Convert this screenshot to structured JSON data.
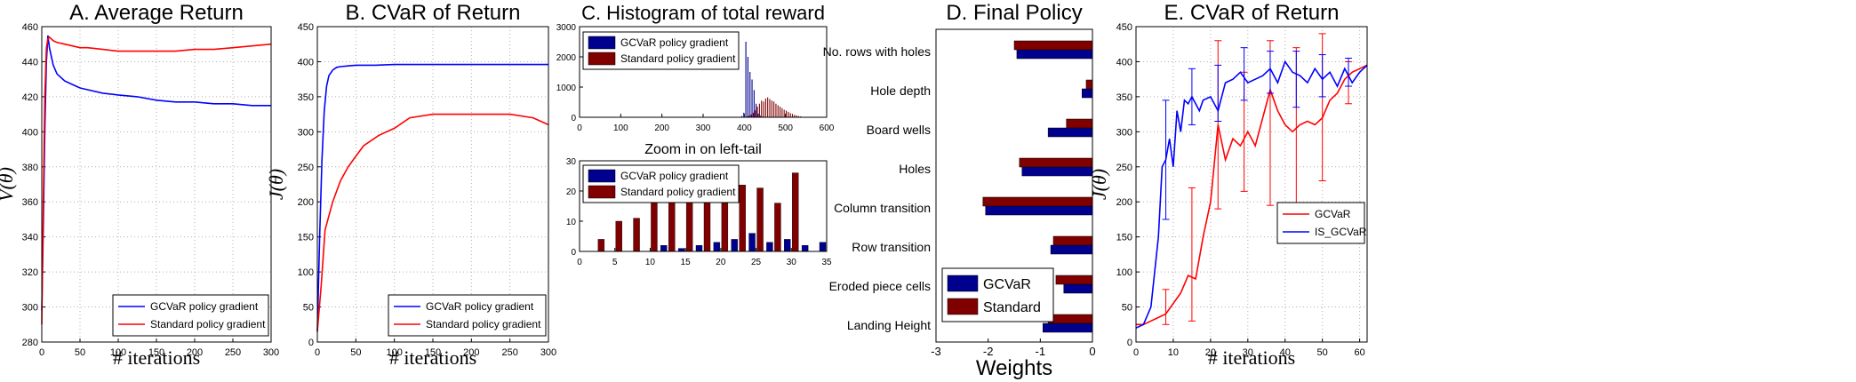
{
  "colors": {
    "blue": "#0000ff",
    "red": "#ff0000",
    "navy": "#00008f",
    "maroon": "#800000",
    "grid": "#b0b0b0"
  },
  "chart_data": [
    {
      "type": "line",
      "title": "A. Average Return",
      "xlabel": "# iterations",
      "ylabel": "V(θ)",
      "xlim": [
        0,
        300
      ],
      "ylim": [
        280,
        460
      ],
      "xticks": [
        "0",
        "50",
        "100",
        "150",
        "200",
        "250",
        "300"
      ],
      "yticks": [
        "280",
        "300",
        "320",
        "340",
        "360",
        "380",
        "400",
        "420",
        "440",
        "460"
      ],
      "grid": true,
      "legend_position": "bottom-right",
      "series": [
        {
          "name": "GCVaR policy gradient",
          "color": "#0000ff",
          "x": [
            0,
            2,
            4,
            6,
            8,
            10,
            15,
            20,
            30,
            40,
            50,
            60,
            80,
            100,
            125,
            150,
            175,
            200,
            225,
            250,
            275,
            300
          ],
          "y": [
            298,
            345,
            400,
            440,
            455,
            448,
            438,
            433,
            429,
            427,
            425,
            424,
            422,
            421,
            420,
            418,
            417,
            417,
            416,
            416,
            415,
            415
          ]
        },
        {
          "name": "Standard policy gradient",
          "color": "#ff0000",
          "x": [
            0,
            2,
            4,
            6,
            8,
            10,
            15,
            20,
            30,
            40,
            50,
            60,
            80,
            100,
            125,
            150,
            175,
            200,
            225,
            250,
            275,
            300
          ],
          "y": [
            290,
            360,
            420,
            448,
            453,
            454,
            452,
            451,
            450,
            449,
            448,
            448,
            447,
            446,
            446,
            446,
            446,
            447,
            447,
            448,
            449,
            450
          ]
        }
      ]
    },
    {
      "type": "line",
      "title": "B. CVaR of Return",
      "xlabel": "# iterations",
      "ylabel": "J(θ)",
      "xlim": [
        0,
        300
      ],
      "ylim": [
        0,
        450
      ],
      "xticks": [
        "0",
        "50",
        "100",
        "150",
        "200",
        "250",
        "300"
      ],
      "yticks": [
        "0",
        "50",
        "100",
        "150",
        "200",
        "250",
        "300",
        "350",
        "400",
        "450"
      ],
      "grid": true,
      "legend_position": "bottom-right",
      "series": [
        {
          "name": "GCVaR policy gradient",
          "color": "#0000ff",
          "x": [
            0,
            3,
            6,
            9,
            12,
            15,
            20,
            25,
            30,
            40,
            50,
            75,
            100,
            150,
            200,
            250,
            300
          ],
          "y": [
            15,
            150,
            260,
            330,
            365,
            380,
            388,
            392,
            393,
            394,
            395,
            395,
            396,
            396,
            396,
            396,
            396
          ]
        },
        {
          "name": "Standard policy gradient",
          "color": "#ff0000",
          "x": [
            0,
            5,
            10,
            20,
            30,
            40,
            50,
            60,
            80,
            100,
            120,
            150,
            200,
            250,
            280,
            300
          ],
          "y": [
            15,
            80,
            160,
            200,
            230,
            250,
            265,
            280,
            295,
            305,
            320,
            325,
            325,
            325,
            320,
            310
          ]
        }
      ]
    },
    {
      "type": "bar",
      "title": "C. Histogram of total reward",
      "xlim": [
        0,
        600
      ],
      "ylim": [
        0,
        3000
      ],
      "xticks": [
        "0",
        "100",
        "200",
        "300",
        "400",
        "500",
        "600"
      ],
      "yticks": [
        "0",
        "1000",
        "2000",
        "3000"
      ],
      "grid": false,
      "legend_position": "top-left",
      "categories": [
        395,
        400,
        405,
        410,
        415,
        420,
        425,
        430,
        435,
        440,
        445,
        450,
        455,
        460,
        465,
        470,
        475,
        480,
        485,
        490,
        495,
        500,
        505,
        510,
        515,
        520,
        525,
        530,
        535,
        540
      ],
      "series": [
        {
          "name": "GCVaR policy gradient",
          "color": "#00008f",
          "values": [
            40,
            150,
            2500,
            2000,
            1500,
            1250,
            900,
            450,
            120,
            50,
            20,
            10,
            5,
            0,
            0,
            0,
            0,
            0,
            0,
            0,
            0,
            0,
            0,
            0,
            0,
            0,
            0,
            0,
            0,
            0
          ]
        },
        {
          "name": "Standard policy gradient",
          "color": "#800000",
          "values": [
            5,
            10,
            30,
            50,
            90,
            150,
            230,
            350,
            450,
            550,
            520,
            620,
            660,
            600,
            550,
            520,
            450,
            400,
            350,
            300,
            250,
            220,
            180,
            140,
            110,
            80,
            60,
            40,
            30,
            15
          ]
        }
      ]
    },
    {
      "type": "bar",
      "title": "Zoom in on left-tail",
      "xlim": [
        0,
        35
      ],
      "ylim": [
        0,
        30
      ],
      "xticks": [
        "0",
        "5",
        "10",
        "15",
        "20",
        "25",
        "30",
        "35"
      ],
      "yticks": [
        "0",
        "10",
        "20",
        "30"
      ],
      "grid": false,
      "legend_position": "top-left",
      "categories": [
        2.5,
        5,
        7.5,
        10,
        12.5,
        15,
        17.5,
        20,
        22.5,
        25,
        27.5,
        30,
        32.5,
        35
      ],
      "series": [
        {
          "name": "GCVaR policy gradient",
          "color": "#00008f",
          "values": [
            0,
            0,
            0,
            0,
            2,
            1,
            2,
            3,
            4,
            6,
            3,
            4,
            2,
            3
          ]
        },
        {
          "name": "Standard policy gradient",
          "color": "#800000",
          "values": [
            4,
            10,
            11,
            18,
            17,
            18,
            18,
            16,
            22,
            21,
            16,
            26,
            0,
            0
          ]
        }
      ]
    },
    {
      "type": "bar",
      "title": "D. Final Policy",
      "xlabel": "Weights",
      "xlim": [
        -3,
        0
      ],
      "xticks": [
        "-3",
        "-2",
        "-1",
        "0"
      ],
      "grid": false,
      "legend_position": "bottom-left",
      "categories": [
        "No. rows with holes",
        "Hole depth",
        "Board wells",
        "Holes",
        "Column transition",
        "Row transition",
        "Eroded piece cells",
        "Landing Height"
      ],
      "series": [
        {
          "name": "GCVaR",
          "color": "#00008f",
          "values": [
            -1.45,
            -0.2,
            -0.85,
            -1.35,
            -2.05,
            -0.8,
            -0.55,
            -0.95
          ]
        },
        {
          "name": "Standard",
          "color": "#800000",
          "values": [
            -1.5,
            -0.12,
            -0.5,
            -1.4,
            -2.1,
            -0.75,
            -0.7,
            -0.85
          ]
        }
      ]
    },
    {
      "type": "line",
      "title": "E. CVaR of Return",
      "xlabel": "# iterations",
      "ylabel": "J(θ)",
      "xlim": [
        0,
        62
      ],
      "ylim": [
        0,
        450
      ],
      "xticks": [
        "0",
        "10",
        "20",
        "30",
        "40",
        "50",
        "60"
      ],
      "yticks": [
        "0",
        "50",
        "100",
        "150",
        "200",
        "250",
        "300",
        "350",
        "400",
        "450"
      ],
      "grid": true,
      "legend_position": "bottom-right",
      "series": [
        {
          "name": "GCVaR",
          "color": "#ff0000",
          "x": [
            0,
            2,
            4,
            6,
            8,
            10,
            12,
            14,
            16,
            18,
            20,
            22,
            24,
            26,
            28,
            30,
            32,
            34,
            36,
            38,
            40,
            42,
            44,
            46,
            48,
            50,
            52,
            54,
            56,
            58,
            60,
            62
          ],
          "y": [
            25,
            25,
            30,
            35,
            40,
            55,
            70,
            95,
            90,
            150,
            200,
            310,
            260,
            290,
            280,
            300,
            280,
            320,
            360,
            330,
            310,
            300,
            310,
            315,
            310,
            320,
            345,
            355,
            375,
            385,
            390,
            395
          ],
          "errorbars": [
            {
              "x": 8,
              "y": 45,
              "lo": 25,
              "hi": 75
            },
            {
              "x": 15,
              "y": 125,
              "lo": 30,
              "hi": 220
            },
            {
              "x": 22,
              "y": 310,
              "lo": 190,
              "hi": 430
            },
            {
              "x": 29,
              "y": 300,
              "lo": 215,
              "hi": 385
            },
            {
              "x": 36,
              "y": 370,
              "lo": 195,
              "hi": 430
            },
            {
              "x": 43,
              "y": 295,
              "lo": 160,
              "hi": 420
            },
            {
              "x": 50,
              "y": 330,
              "lo": 230,
              "hi": 440
            },
            {
              "x": 57,
              "y": 380,
              "lo": 340,
              "hi": 400
            }
          ]
        },
        {
          "name": "IS_GCVaR",
          "color": "#0000ff",
          "x": [
            0,
            2,
            4,
            6,
            7,
            8,
            9,
            10,
            11,
            12,
            13,
            14,
            15,
            16,
            17,
            18,
            20,
            22,
            24,
            26,
            28,
            30,
            32,
            34,
            36,
            38,
            40,
            42,
            44,
            46,
            48,
            50,
            52,
            54,
            56,
            58,
            60,
            62
          ],
          "y": [
            20,
            25,
            50,
            150,
            250,
            260,
            290,
            250,
            330,
            300,
            345,
            340,
            350,
            340,
            330,
            345,
            350,
            330,
            370,
            375,
            385,
            370,
            375,
            380,
            390,
            370,
            400,
            385,
            380,
            370,
            390,
            375,
            385,
            365,
            390,
            370,
            385,
            395
          ],
          "errorbars": [
            {
              "x": 8,
              "y": 260,
              "lo": 175,
              "hi": 345
            },
            {
              "x": 15,
              "y": 350,
              "lo": 310,
              "hi": 390
            },
            {
              "x": 22,
              "y": 355,
              "lo": 315,
              "hi": 395
            },
            {
              "x": 29,
              "y": 380,
              "lo": 345,
              "hi": 420
            },
            {
              "x": 36,
              "y": 385,
              "lo": 355,
              "hi": 415
            },
            {
              "x": 43,
              "y": 375,
              "lo": 335,
              "hi": 415
            },
            {
              "x": 50,
              "y": 380,
              "lo": 350,
              "hi": 410
            },
            {
              "x": 57,
              "y": 385,
              "lo": 365,
              "hi": 405
            }
          ]
        }
      ]
    }
  ]
}
